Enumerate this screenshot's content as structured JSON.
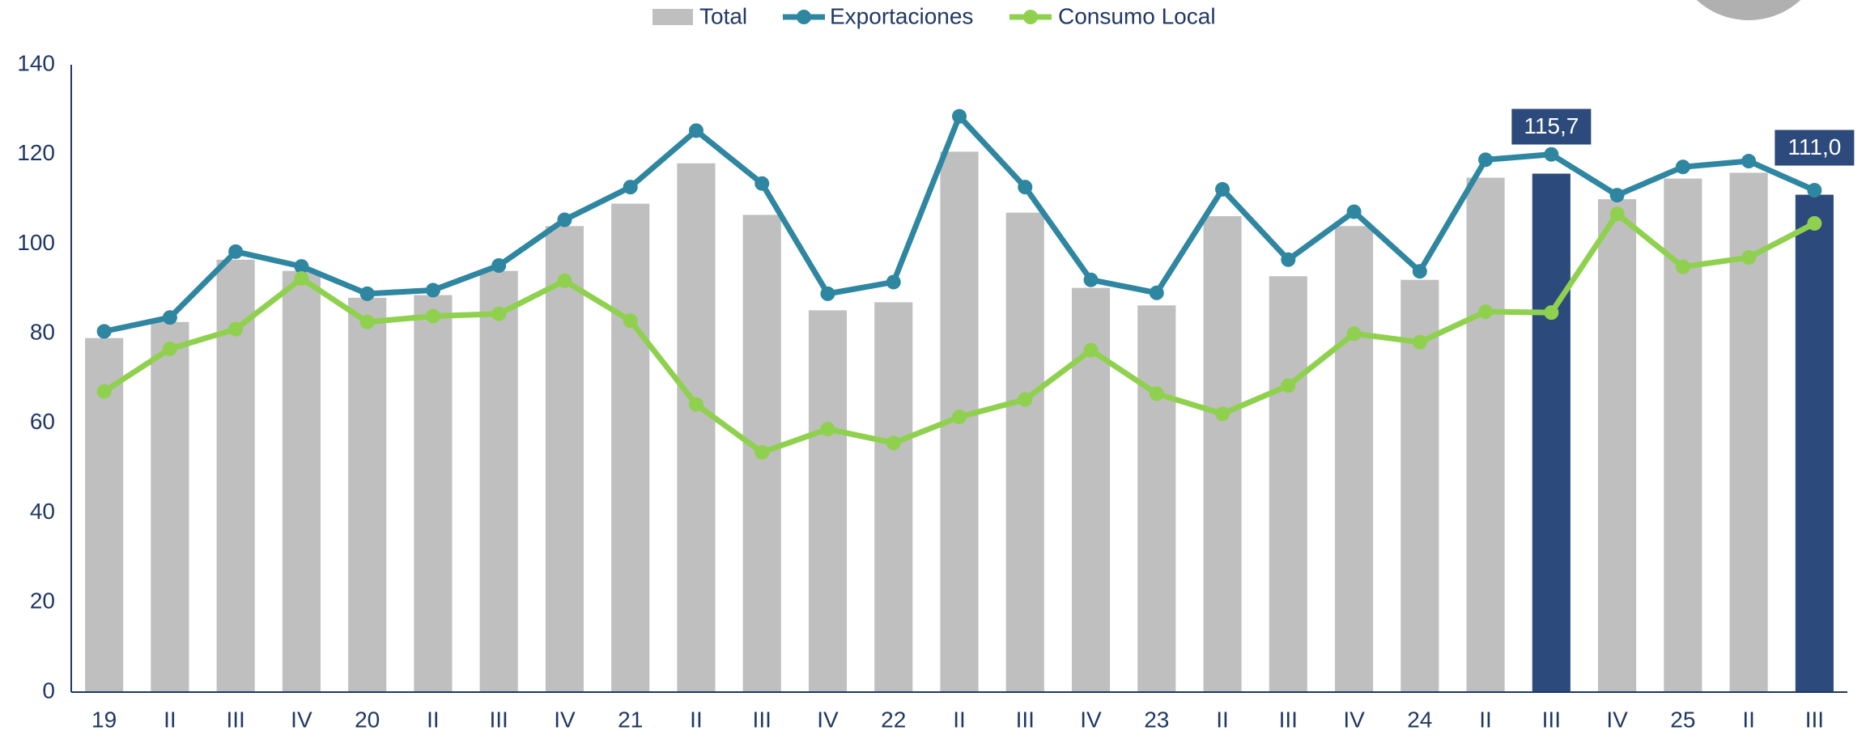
{
  "chart_data": {
    "type": "bar_line",
    "categories": [
      "19",
      "II",
      "III",
      "IV",
      "20",
      "II",
      "III",
      "IV",
      "21",
      "II",
      "III",
      "IV",
      "22",
      "II",
      "III",
      "IV",
      "23",
      "II",
      "III",
      "IV",
      "24",
      "II",
      "III",
      "IV",
      "25",
      "II",
      "III"
    ],
    "series": [
      {
        "name": "Total",
        "type": "bar",
        "color": "#bfbfbf",
        "values": [
          79,
          82.6,
          96.5,
          94,
          88,
          88.6,
          94,
          104,
          109,
          118,
          106.5,
          85.2,
          87,
          120.6,
          107,
          90.2,
          86.3,
          106.2,
          92.8,
          104,
          92,
          114.8,
          115.7,
          110,
          114.6,
          115.9,
          111.0
        ],
        "bar_colors": [
          "#bfbfbf",
          "#bfbfbf",
          "#bfbfbf",
          "#bfbfbf",
          "#bfbfbf",
          "#bfbfbf",
          "#bfbfbf",
          "#bfbfbf",
          "#bfbfbf",
          "#bfbfbf",
          "#bfbfbf",
          "#bfbfbf",
          "#bfbfbf",
          "#bfbfbf",
          "#bfbfbf",
          "#bfbfbf",
          "#bfbfbf",
          "#bfbfbf",
          "#bfbfbf",
          "#bfbfbf",
          "#bfbfbf",
          "#bfbfbf",
          "#2c4a7c",
          "#bfbfbf",
          "#bfbfbf",
          "#bfbfbf",
          "#2c4a7c"
        ],
        "value_labels": [
          null,
          null,
          null,
          null,
          null,
          null,
          null,
          null,
          null,
          null,
          null,
          null,
          null,
          null,
          null,
          null,
          null,
          null,
          null,
          null,
          null,
          null,
          "115,7",
          null,
          null,
          null,
          "111,0"
        ]
      },
      {
        "name": "Exportaciones",
        "type": "line",
        "color": "#2e86a0",
        "values": [
          80.5,
          83.6,
          98.3,
          95,
          88.9,
          89.7,
          95.2,
          105.4,
          112.7,
          125.3,
          113.5,
          88.9,
          91.5,
          128.5,
          112.7,
          92,
          89.1,
          112.2,
          96.5,
          107.2,
          93.9,
          118.8,
          120,
          110.9,
          117.2,
          118.5,
          112
        ]
      },
      {
        "name": "Consumo Local",
        "type": "line",
        "color": "#8fd14f",
        "values": [
          67.1,
          76.6,
          81,
          92.3,
          82.6,
          83.9,
          84.4,
          91.8,
          82.9,
          64.2,
          53.5,
          58.7,
          55.6,
          61.4,
          65.3,
          76.3,
          66.6,
          62.1,
          68.4,
          80,
          78.1,
          84.9,
          84.7,
          106.7,
          94.9,
          97,
          104.6
        ]
      }
    ],
    "ylim": [
      0,
      140
    ],
    "yticks": [
      0,
      20,
      40,
      60,
      80,
      100,
      120,
      140
    ],
    "grid": false,
    "legend": "top"
  }
}
